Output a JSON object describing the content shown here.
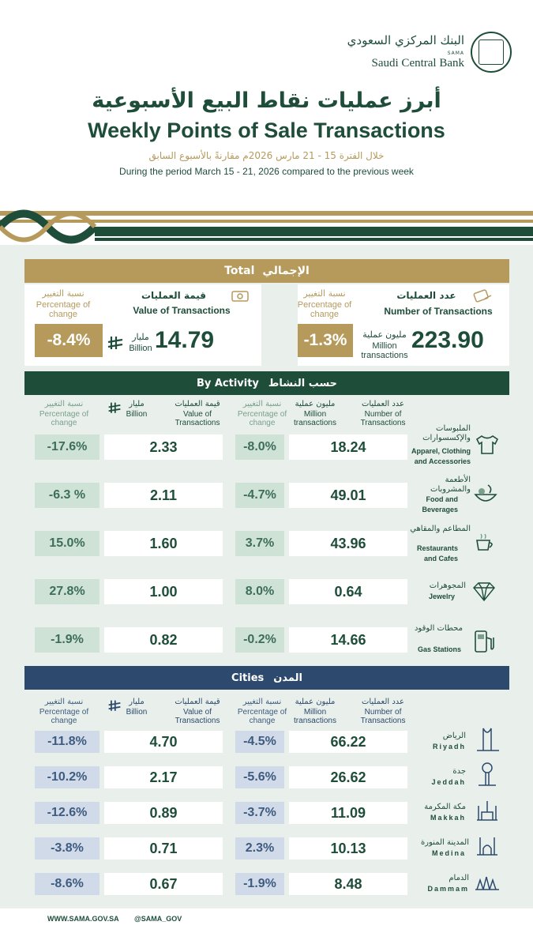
{
  "header": {
    "logo_ar": "البنك المركزي السعودي",
    "logo_sama": "SAMA",
    "logo_en": "Saudi Central Bank",
    "title_ar": "أبرز عمليات نقاط البيع الأسبوعية",
    "title_en": "Weekly Points of Sale Transactions",
    "period_ar": "خلال الفترة 15 - 21 مارس 2026م مقارنةً بالأسبوع السابق",
    "period_en": "During the period March 15 - 21, 2026 compared to the previous week"
  },
  "total": {
    "heading_en": "Total",
    "heading_ar": "الإجمالي",
    "pct_ar": "نسبة التغيير",
    "pct_en": "Percentage of change",
    "value_ar": "قيمة العمليات",
    "value_en": "Value of Transactions",
    "count_ar": "عدد العمليات",
    "count_en": "Number of Transactions",
    "value_pct": "-8.4%",
    "value_amount": "14.79",
    "value_unit_ar": "مليار",
    "value_unit_en": "Billion",
    "count_pct": "-1.3%",
    "count_amount": "223.90",
    "count_unit_ar": "مليون عملية",
    "count_unit_en": "Million transactions"
  },
  "activity": {
    "heading_en": "By Activity",
    "heading_ar": "حسب النشاط",
    "col_pct_ar": "نسبة التغيير",
    "col_pct_en": "Percentage of change",
    "col_billion_ar": "مليار",
    "col_billion_en": "Billion",
    "col_value_ar": "قيمة العمليات",
    "col_value_en": "Value of Transactions",
    "col_pct2_ar": "نسبة التغيير",
    "col_pct2_en": "Percentage of change",
    "col_million_ar": "مليون عملية",
    "col_million_en": "Million transactions",
    "col_count_ar": "عدد العمليات",
    "col_count_en": "Number of Transactions",
    "rows": [
      {
        "ar": "الملبوسات والإكسسوارات",
        "en": "Apparel, Clothing and Accessories",
        "icon": "shirt-icon",
        "value_pct": "-17.6%",
        "value": "2.33",
        "count_pct": "-8.0%",
        "count": "18.24"
      },
      {
        "ar": "الأطعمة والمشروبات",
        "en": "Food and Beverages",
        "icon": "food-icon",
        "value_pct": "-6.3 %",
        "value": "2.11",
        "count_pct": "-4.7%",
        "count": "49.01"
      },
      {
        "ar": "المطاعم والمقاهي",
        "en": "Restaurants and Cafes",
        "icon": "cafe-icon",
        "value_pct": "15.0%",
        "value": "1.60",
        "count_pct": "3.7%",
        "count": "43.96"
      },
      {
        "ar": "المجوهرات",
        "en": "Jewelry",
        "icon": "diamond-icon",
        "value_pct": "27.8%",
        "value": "1.00",
        "count_pct": "8.0%",
        "count": "0.64"
      },
      {
        "ar": "محطات الوقود",
        "en": "Gas Stations",
        "icon": "fuel-icon",
        "value_pct": "-1.9%",
        "value": "0.82",
        "count_pct": "-0.2%",
        "count": "14.66"
      }
    ]
  },
  "cities": {
    "heading_en": "Cities",
    "heading_ar": "المدن",
    "rows": [
      {
        "ar": "الرياض",
        "en": "Riyadh",
        "icon": "riyadh-tower-icon",
        "value_pct": "-11.8%",
        "value": "4.70",
        "count_pct": "-4.5%",
        "count": "66.22"
      },
      {
        "ar": "جدة",
        "en": "Jeddah",
        "icon": "jeddah-tower-icon",
        "value_pct": "-10.2%",
        "value": "2.17",
        "count_pct": "-5.6%",
        "count": "26.62"
      },
      {
        "ar": "مكة المكرمة",
        "en": "Makkah",
        "icon": "makkah-icon",
        "value_pct": "-12.6%",
        "value": "0.89",
        "count_pct": "-3.7%",
        "count": "11.09"
      },
      {
        "ar": "المدينة المنورة",
        "en": "Medina",
        "icon": "medina-icon",
        "value_pct": "-3.8%",
        "value": "0.71",
        "count_pct": "2.3%",
        "count": "10.13"
      },
      {
        "ar": "الدمام",
        "en": "Dammam",
        "icon": "dammam-icon",
        "value_pct": "-8.6%",
        "value": "0.67",
        "count_pct": "-1.9%",
        "count": "8.48"
      }
    ]
  },
  "footer": {
    "website": "WWW.SAMA.GOV.SA",
    "handle": "@SAMA_GOV"
  },
  "colors": {
    "green": "#1e4d3a",
    "gold": "#b59a5c",
    "blue": "#2d4a6e"
  }
}
